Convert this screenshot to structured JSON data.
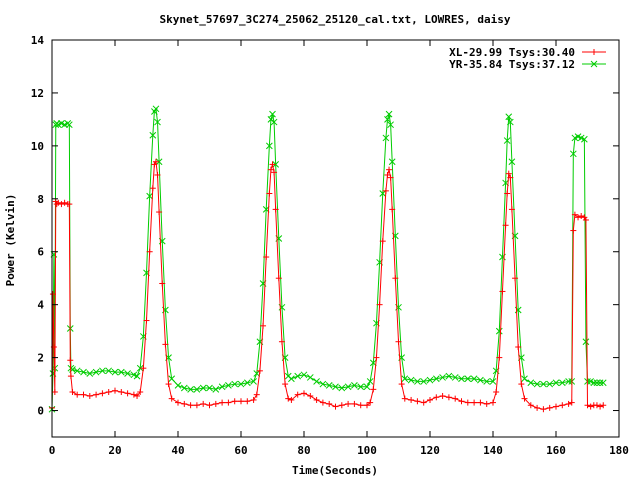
{
  "chart_data": {
    "type": "line",
    "title": "Skynet_57697_3C274_25062_25120_cal.txt, LOWRES, daisy",
    "xlabel": "Time(Seconds)",
    "ylabel": "Power (Kelvin)",
    "xlim": [
      0,
      180
    ],
    "ylim": [
      -1,
      14
    ],
    "xticks": [
      0,
      20,
      40,
      60,
      80,
      100,
      120,
      140,
      160,
      180
    ],
    "yticks": [
      0,
      2,
      4,
      6,
      8,
      10,
      12,
      14
    ],
    "grid": false,
    "legend_position": "top-right",
    "colors": {
      "frame": "#000000",
      "bg": "#ffffff"
    },
    "series": [
      {
        "name": "XL-29.99 Tsys:30.40",
        "color": "#ff0000",
        "marker": "plus",
        "points": [
          [
            0.0,
            0.1
          ],
          [
            0.3,
            4.4
          ],
          [
            0.6,
            2.4
          ],
          [
            0.9,
            0.7
          ],
          [
            1.2,
            7.9
          ],
          [
            1.5,
            7.8
          ],
          [
            2.0,
            7.85
          ],
          [
            3.0,
            7.8
          ],
          [
            4.0,
            7.85
          ],
          [
            5.0,
            7.8
          ],
          [
            5.5,
            7.8
          ],
          [
            5.8,
            1.9
          ],
          [
            6.0,
            1.3
          ],
          [
            6.5,
            0.7
          ],
          [
            8,
            0.6
          ],
          [
            10,
            0.6
          ],
          [
            12,
            0.55
          ],
          [
            14,
            0.6
          ],
          [
            16,
            0.65
          ],
          [
            18,
            0.7
          ],
          [
            20,
            0.75
          ],
          [
            22,
            0.7
          ],
          [
            24,
            0.65
          ],
          [
            26,
            0.6
          ],
          [
            27,
            0.55
          ],
          [
            28,
            0.7
          ],
          [
            29,
            1.6
          ],
          [
            30,
            3.4
          ],
          [
            31,
            6.0
          ],
          [
            32,
            8.4
          ],
          [
            32.5,
            9.3
          ],
          [
            33,
            9.4
          ],
          [
            33.5,
            8.9
          ],
          [
            34,
            7.5
          ],
          [
            35,
            4.8
          ],
          [
            36,
            2.5
          ],
          [
            37,
            1.0
          ],
          [
            38,
            0.45
          ],
          [
            40,
            0.3
          ],
          [
            42,
            0.25
          ],
          [
            44,
            0.2
          ],
          [
            46,
            0.2
          ],
          [
            48,
            0.25
          ],
          [
            50,
            0.2
          ],
          [
            52,
            0.25
          ],
          [
            54,
            0.3
          ],
          [
            56,
            0.3
          ],
          [
            58,
            0.35
          ],
          [
            60,
            0.35
          ],
          [
            62,
            0.35
          ],
          [
            64,
            0.4
          ],
          [
            65,
            0.6
          ],
          [
            66,
            1.5
          ],
          [
            67,
            3.2
          ],
          [
            68,
            5.8
          ],
          [
            69,
            8.2
          ],
          [
            69.5,
            9.1
          ],
          [
            70,
            9.3
          ],
          [
            70.5,
            9.0
          ],
          [
            71,
            7.6
          ],
          [
            72,
            5.0
          ],
          [
            73,
            2.6
          ],
          [
            74,
            1.0
          ],
          [
            75,
            0.45
          ],
          [
            76,
            0.4
          ],
          [
            78,
            0.6
          ],
          [
            80,
            0.65
          ],
          [
            82,
            0.55
          ],
          [
            84,
            0.4
          ],
          [
            86,
            0.3
          ],
          [
            88,
            0.25
          ],
          [
            90,
            0.15
          ],
          [
            92,
            0.2
          ],
          [
            94,
            0.25
          ],
          [
            96,
            0.25
          ],
          [
            98,
            0.2
          ],
          [
            100,
            0.2
          ],
          [
            101,
            0.3
          ],
          [
            102,
            0.8
          ],
          [
            103,
            2.0
          ],
          [
            104,
            4.0
          ],
          [
            105,
            6.4
          ],
          [
            106,
            8.3
          ],
          [
            106.5,
            8.9
          ],
          [
            107,
            9.1
          ],
          [
            107.5,
            8.8
          ],
          [
            108,
            7.6
          ],
          [
            109,
            5.0
          ],
          [
            110,
            2.6
          ],
          [
            111,
            1.0
          ],
          [
            112,
            0.45
          ],
          [
            114,
            0.4
          ],
          [
            116,
            0.35
          ],
          [
            118,
            0.3
          ],
          [
            120,
            0.4
          ],
          [
            122,
            0.5
          ],
          [
            124,
            0.55
          ],
          [
            126,
            0.5
          ],
          [
            128,
            0.45
          ],
          [
            130,
            0.35
          ],
          [
            132,
            0.3
          ],
          [
            134,
            0.3
          ],
          [
            136,
            0.3
          ],
          [
            138,
            0.25
          ],
          [
            140,
            0.3
          ],
          [
            141,
            0.7
          ],
          [
            142,
            2.0
          ],
          [
            143,
            4.5
          ],
          [
            144,
            7.0
          ],
          [
            144.5,
            8.2
          ],
          [
            145,
            8.95
          ],
          [
            145.5,
            8.8
          ],
          [
            146,
            7.6
          ],
          [
            147,
            5.0
          ],
          [
            148,
            2.4
          ],
          [
            149,
            1.0
          ],
          [
            150,
            0.45
          ],
          [
            152,
            0.2
          ],
          [
            154,
            0.1
          ],
          [
            156,
            0.05
          ],
          [
            158,
            0.1
          ],
          [
            160,
            0.15
          ],
          [
            162,
            0.2
          ],
          [
            164,
            0.25
          ],
          [
            165,
            0.3
          ],
          [
            165.5,
            6.8
          ],
          [
            166,
            7.4
          ],
          [
            167,
            7.3
          ],
          [
            168,
            7.35
          ],
          [
            169,
            7.3
          ],
          [
            169.5,
            7.2
          ],
          [
            170,
            0.2
          ],
          [
            171,
            0.15
          ],
          [
            172,
            0.2
          ],
          [
            173,
            0.2
          ],
          [
            174,
            0.15
          ],
          [
            175,
            0.2
          ]
        ]
      },
      {
        "name": "YR-35.84 Tsys:37.12",
        "color": "#00cc00",
        "marker": "cross",
        "points": [
          [
            0.0,
            0.05
          ],
          [
            0.3,
            1.4
          ],
          [
            0.6,
            5.9
          ],
          [
            0.9,
            1.6
          ],
          [
            1.2,
            10.8
          ],
          [
            1.5,
            10.85
          ],
          [
            2.0,
            10.8
          ],
          [
            3.0,
            10.85
          ],
          [
            4.0,
            10.8
          ],
          [
            5.0,
            10.85
          ],
          [
            5.5,
            10.8
          ],
          [
            5.8,
            3.1
          ],
          [
            6.0,
            1.6
          ],
          [
            6.5,
            1.55
          ],
          [
            8,
            1.5
          ],
          [
            10,
            1.45
          ],
          [
            12,
            1.4
          ],
          [
            14,
            1.45
          ],
          [
            16,
            1.5
          ],
          [
            18,
            1.5
          ],
          [
            20,
            1.45
          ],
          [
            22,
            1.45
          ],
          [
            24,
            1.4
          ],
          [
            26,
            1.35
          ],
          [
            27,
            1.3
          ],
          [
            28,
            1.6
          ],
          [
            29,
            2.8
          ],
          [
            30,
            5.2
          ],
          [
            31,
            8.1
          ],
          [
            32,
            10.4
          ],
          [
            32.5,
            11.3
          ],
          [
            33,
            11.4
          ],
          [
            33.5,
            10.9
          ],
          [
            34,
            9.4
          ],
          [
            35,
            6.4
          ],
          [
            36,
            3.8
          ],
          [
            37,
            2.0
          ],
          [
            38,
            1.2
          ],
          [
            40,
            0.95
          ],
          [
            42,
            0.85
          ],
          [
            44,
            0.8
          ],
          [
            46,
            0.8
          ],
          [
            48,
            0.85
          ],
          [
            50,
            0.85
          ],
          [
            52,
            0.8
          ],
          [
            54,
            0.9
          ],
          [
            56,
            0.95
          ],
          [
            58,
            1.0
          ],
          [
            60,
            1.0
          ],
          [
            62,
            1.05
          ],
          [
            64,
            1.1
          ],
          [
            65,
            1.4
          ],
          [
            66,
            2.6
          ],
          [
            67,
            4.8
          ],
          [
            68,
            7.6
          ],
          [
            69,
            10.0
          ],
          [
            69.5,
            11.0
          ],
          [
            70,
            11.2
          ],
          [
            70.5,
            10.9
          ],
          [
            71,
            9.3
          ],
          [
            72,
            6.5
          ],
          [
            73,
            3.9
          ],
          [
            74,
            2.0
          ],
          [
            75,
            1.3
          ],
          [
            76,
            1.2
          ],
          [
            78,
            1.3
          ],
          [
            80,
            1.35
          ],
          [
            82,
            1.25
          ],
          [
            84,
            1.1
          ],
          [
            86,
            1.0
          ],
          [
            88,
            0.95
          ],
          [
            90,
            0.9
          ],
          [
            92,
            0.85
          ],
          [
            94,
            0.9
          ],
          [
            96,
            0.95
          ],
          [
            98,
            0.9
          ],
          [
            100,
            0.9
          ],
          [
            101,
            1.1
          ],
          [
            102,
            1.8
          ],
          [
            103,
            3.3
          ],
          [
            104,
            5.6
          ],
          [
            105,
            8.2
          ],
          [
            106,
            10.3
          ],
          [
            106.5,
            11.0
          ],
          [
            107,
            11.2
          ],
          [
            107.5,
            10.8
          ],
          [
            108,
            9.4
          ],
          [
            109,
            6.6
          ],
          [
            110,
            3.9
          ],
          [
            111,
            2.0
          ],
          [
            112,
            1.2
          ],
          [
            114,
            1.15
          ],
          [
            116,
            1.1
          ],
          [
            118,
            1.1
          ],
          [
            120,
            1.15
          ],
          [
            122,
            1.2
          ],
          [
            124,
            1.25
          ],
          [
            126,
            1.3
          ],
          [
            128,
            1.25
          ],
          [
            130,
            1.2
          ],
          [
            132,
            1.2
          ],
          [
            134,
            1.2
          ],
          [
            136,
            1.15
          ],
          [
            138,
            1.1
          ],
          [
            140,
            1.1
          ],
          [
            141,
            1.5
          ],
          [
            142,
            3.0
          ],
          [
            143,
            5.8
          ],
          [
            144,
            8.6
          ],
          [
            144.5,
            10.2
          ],
          [
            145,
            11.1
          ],
          [
            145.5,
            10.9
          ],
          [
            146,
            9.4
          ],
          [
            147,
            6.6
          ],
          [
            148,
            3.8
          ],
          [
            149,
            2.0
          ],
          [
            150,
            1.2
          ],
          [
            152,
            1.05
          ],
          [
            154,
            1.0
          ],
          [
            156,
            1.0
          ],
          [
            158,
            1.0
          ],
          [
            160,
            1.05
          ],
          [
            162,
            1.05
          ],
          [
            164,
            1.1
          ],
          [
            165,
            1.1
          ],
          [
            165.5,
            9.7
          ],
          [
            166,
            10.3
          ],
          [
            167,
            10.35
          ],
          [
            168,
            10.3
          ],
          [
            169,
            10.25
          ],
          [
            169.5,
            2.6
          ],
          [
            170,
            1.1
          ],
          [
            171,
            1.1
          ],
          [
            172,
            1.05
          ],
          [
            173,
            1.05
          ],
          [
            174,
            1.05
          ],
          [
            175,
            1.05
          ]
        ]
      }
    ]
  }
}
